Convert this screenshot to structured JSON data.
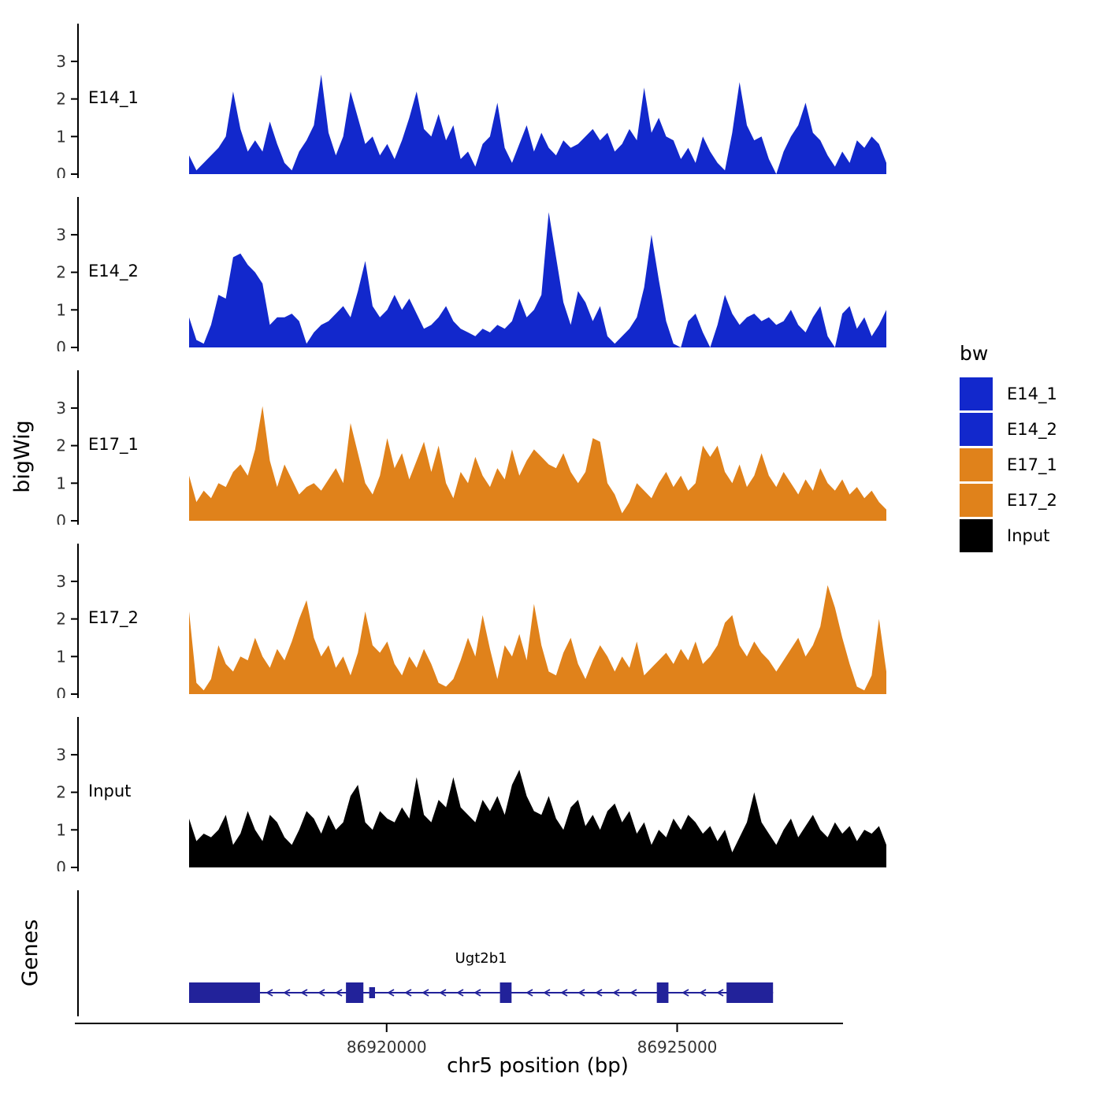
{
  "chart_data": {
    "type": "area",
    "subtype": "genome-coverage-tracks",
    "x_axis": {
      "label": "chr5 position (bp)",
      "xlim": [
        86916600,
        86928600
      ],
      "ticks": [
        86920000,
        86925000
      ],
      "tick_labels": [
        "86920000",
        "86925000"
      ]
    },
    "y_axis": {
      "label": "bigWig",
      "ticks": [
        0,
        1,
        2,
        3
      ],
      "ymax": 3.9
    },
    "tracks": [
      {
        "name": "E14_1",
        "color": "#1228CC",
        "values": [
          0.5,
          0.1,
          0.3,
          0.5,
          0.7,
          1.0,
          2.2,
          1.2,
          0.6,
          0.9,
          0.6,
          1.4,
          0.8,
          0.3,
          0.1,
          0.6,
          0.9,
          1.3,
          2.65,
          1.1,
          0.5,
          1.0,
          2.2,
          1.5,
          0.8,
          1.0,
          0.5,
          0.8,
          0.4,
          0.9,
          1.5,
          2.2,
          1.2,
          1.0,
          1.6,
          0.9,
          1.3,
          0.4,
          0.6,
          0.2,
          0.8,
          1.0,
          1.9,
          0.7,
          0.3,
          0.8,
          1.3,
          0.6,
          1.1,
          0.7,
          0.5,
          0.9,
          0.7,
          0.8,
          1.0,
          1.2,
          0.9,
          1.1,
          0.6,
          0.8,
          1.2,
          0.9,
          2.3,
          1.1,
          1.5,
          1.0,
          0.9,
          0.4,
          0.7,
          0.3,
          1.0,
          0.6,
          0.3,
          0.1,
          1.1,
          2.45,
          1.3,
          0.9,
          1.0,
          0.4,
          0.0,
          0.6,
          1.0,
          1.3,
          1.9,
          1.1,
          0.9,
          0.5,
          0.2,
          0.6,
          0.3,
          0.9,
          0.7,
          1.0,
          0.8,
          0.3
        ]
      },
      {
        "name": "E14_2",
        "color": "#1228CC",
        "values": [
          0.8,
          0.2,
          0.1,
          0.6,
          1.4,
          1.3,
          2.4,
          2.5,
          2.2,
          2.0,
          1.7,
          0.6,
          0.8,
          0.8,
          0.9,
          0.7,
          0.1,
          0.4,
          0.6,
          0.7,
          0.9,
          1.1,
          0.8,
          1.5,
          2.3,
          1.1,
          0.8,
          1.0,
          1.4,
          1.0,
          1.3,
          0.9,
          0.5,
          0.6,
          0.8,
          1.1,
          0.7,
          0.5,
          0.4,
          0.3,
          0.5,
          0.4,
          0.6,
          0.5,
          0.7,
          1.3,
          0.8,
          1.0,
          1.4,
          3.6,
          2.4,
          1.2,
          0.6,
          1.5,
          1.2,
          0.7,
          1.1,
          0.3,
          0.1,
          0.3,
          0.5,
          0.8,
          1.6,
          3.0,
          1.8,
          0.7,
          0.1,
          0.0,
          0.7,
          0.9,
          0.4,
          0.0,
          0.6,
          1.4,
          0.9,
          0.6,
          0.8,
          0.9,
          0.7,
          0.8,
          0.6,
          0.7,
          1.0,
          0.6,
          0.4,
          0.8,
          1.1,
          0.3,
          0.0,
          0.9,
          1.1,
          0.5,
          0.8,
          0.3,
          0.6,
          1.0
        ]
      },
      {
        "name": "E17_1",
        "color": "#E0821B",
        "values": [
          1.2,
          0.5,
          0.8,
          0.6,
          1.0,
          0.9,
          1.3,
          1.5,
          1.2,
          1.9,
          3.05,
          1.6,
          0.9,
          1.5,
          1.1,
          0.7,
          0.9,
          1.0,
          0.8,
          1.1,
          1.4,
          1.0,
          2.6,
          1.8,
          1.0,
          0.7,
          1.2,
          2.2,
          1.4,
          1.8,
          1.1,
          1.6,
          2.1,
          1.3,
          2.0,
          1.0,
          0.6,
          1.3,
          1.0,
          1.7,
          1.2,
          0.9,
          1.4,
          1.1,
          1.9,
          1.2,
          1.6,
          1.9,
          1.7,
          1.5,
          1.4,
          1.8,
          1.3,
          1.0,
          1.3,
          2.2,
          2.1,
          1.0,
          0.7,
          0.2,
          0.5,
          1.0,
          0.8,
          0.6,
          1.0,
          1.3,
          0.9,
          1.2,
          0.8,
          1.0,
          2.0,
          1.7,
          2.0,
          1.3,
          1.0,
          1.5,
          0.9,
          1.2,
          1.8,
          1.2,
          0.9,
          1.3,
          1.0,
          0.7,
          1.1,
          0.8,
          1.4,
          1.0,
          0.8,
          1.1,
          0.7,
          0.9,
          0.6,
          0.8,
          0.5,
          0.3
        ]
      },
      {
        "name": "E17_2",
        "color": "#E0821B",
        "values": [
          2.2,
          0.3,
          0.1,
          0.4,
          1.3,
          0.8,
          0.6,
          1.0,
          0.9,
          1.5,
          1.0,
          0.7,
          1.2,
          0.9,
          1.4,
          2.0,
          2.5,
          1.5,
          1.0,
          1.3,
          0.7,
          1.0,
          0.5,
          1.1,
          2.2,
          1.3,
          1.1,
          1.4,
          0.8,
          0.5,
          1.0,
          0.7,
          1.2,
          0.8,
          0.3,
          0.2,
          0.4,
          0.9,
          1.5,
          1.0,
          2.1,
          1.2,
          0.4,
          1.3,
          1.0,
          1.6,
          0.9,
          2.4,
          1.3,
          0.6,
          0.5,
          1.1,
          1.5,
          0.8,
          0.4,
          0.9,
          1.3,
          1.0,
          0.6,
          1.0,
          0.7,
          1.4,
          0.5,
          0.7,
          0.9,
          1.1,
          0.8,
          1.2,
          0.9,
          1.4,
          0.8,
          1.0,
          1.3,
          1.9,
          2.1,
          1.3,
          1.0,
          1.4,
          1.1,
          0.9,
          0.6,
          0.9,
          1.2,
          1.5,
          1.0,
          1.3,
          1.8,
          2.9,
          2.3,
          1.5,
          0.8,
          0.2,
          0.1,
          0.5,
          2.0,
          0.6
        ]
      },
      {
        "name": "Input",
        "color": "#000000",
        "values": [
          1.3,
          0.7,
          0.9,
          0.8,
          1.0,
          1.4,
          0.6,
          0.9,
          1.5,
          1.0,
          0.7,
          1.4,
          1.2,
          0.8,
          0.6,
          1.0,
          1.5,
          1.3,
          0.9,
          1.4,
          1.0,
          1.2,
          1.9,
          2.2,
          1.2,
          1.0,
          1.5,
          1.3,
          1.2,
          1.6,
          1.3,
          2.4,
          1.4,
          1.2,
          1.8,
          1.6,
          2.4,
          1.6,
          1.4,
          1.2,
          1.8,
          1.5,
          1.9,
          1.4,
          2.2,
          2.6,
          1.9,
          1.5,
          1.4,
          1.9,
          1.3,
          1.0,
          1.6,
          1.8,
          1.1,
          1.4,
          1.0,
          1.5,
          1.7,
          1.2,
          1.5,
          0.9,
          1.2,
          0.6,
          1.0,
          0.8,
          1.3,
          1.0,
          1.4,
          1.2,
          0.9,
          1.1,
          0.7,
          1.0,
          0.4,
          0.8,
          1.2,
          2.0,
          1.2,
          0.9,
          0.6,
          1.0,
          1.3,
          0.8,
          1.1,
          1.4,
          1.0,
          0.8,
          1.2,
          0.9,
          1.1,
          0.7,
          1.0,
          0.9,
          1.1,
          0.6
        ]
      }
    ],
    "genes_track": {
      "label": "Genes",
      "gene": {
        "name": "Ugt2b1",
        "strand": "-",
        "color": "#22229A",
        "start": 86916600,
        "end": 86926650,
        "exons": [
          {
            "start": 86916600,
            "end": 86917820,
            "tall": true
          },
          {
            "start": 86919300,
            "end": 86919600,
            "tall": true
          },
          {
            "start": 86919700,
            "end": 86919800,
            "tall": false
          },
          {
            "start": 86921950,
            "end": 86922150,
            "tall": true
          },
          {
            "start": 86924650,
            "end": 86924850,
            "tall": true
          },
          {
            "start": 86925850,
            "end": 86926650,
            "tall": true
          }
        ]
      }
    },
    "legend": {
      "title": "bw",
      "items": [
        {
          "label": "E14_1",
          "color": "#1228CC"
        },
        {
          "label": "E14_2",
          "color": "#1228CC"
        },
        {
          "label": "E17_1",
          "color": "#E0821B"
        },
        {
          "label": "E17_2",
          "color": "#E0821B"
        },
        {
          "label": "Input",
          "color": "#000000"
        }
      ]
    }
  }
}
